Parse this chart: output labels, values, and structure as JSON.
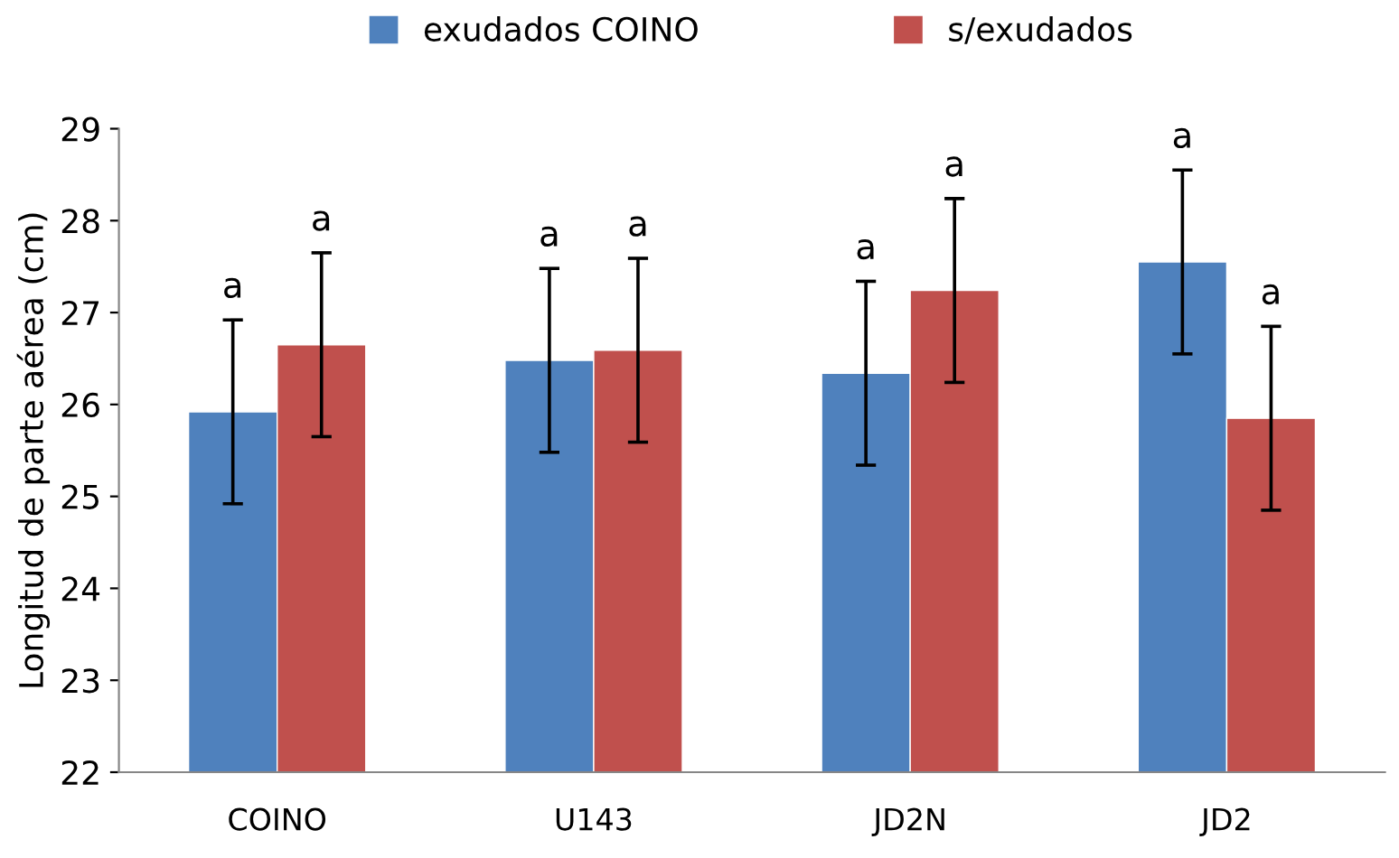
{
  "chart_data": {
    "type": "bar",
    "ylabel": "Longitud de parte aérea (cm)",
    "categories": [
      "COINO",
      "U143",
      "JD2N",
      "JD2"
    ],
    "series": [
      {
        "name": "exudados COINO",
        "color": "#4f81bd",
        "values": [
          25.92,
          26.48,
          26.34,
          27.55
        ],
        "errors": [
          1.0,
          1.0,
          1.0,
          1.0
        ]
      },
      {
        "name": "s/exudados",
        "color": "#c0504d",
        "values": [
          26.65,
          26.59,
          27.24,
          25.85
        ],
        "errors": [
          1.0,
          1.0,
          1.0,
          1.0
        ]
      }
    ],
    "annotations": [
      "a",
      "a",
      "a",
      "a",
      "a",
      "a",
      "a",
      "a"
    ],
    "ylim": [
      22,
      29
    ],
    "yticks": [
      22,
      23,
      24,
      25,
      26,
      27,
      28,
      29
    ],
    "grid": false,
    "legend": "top"
  }
}
